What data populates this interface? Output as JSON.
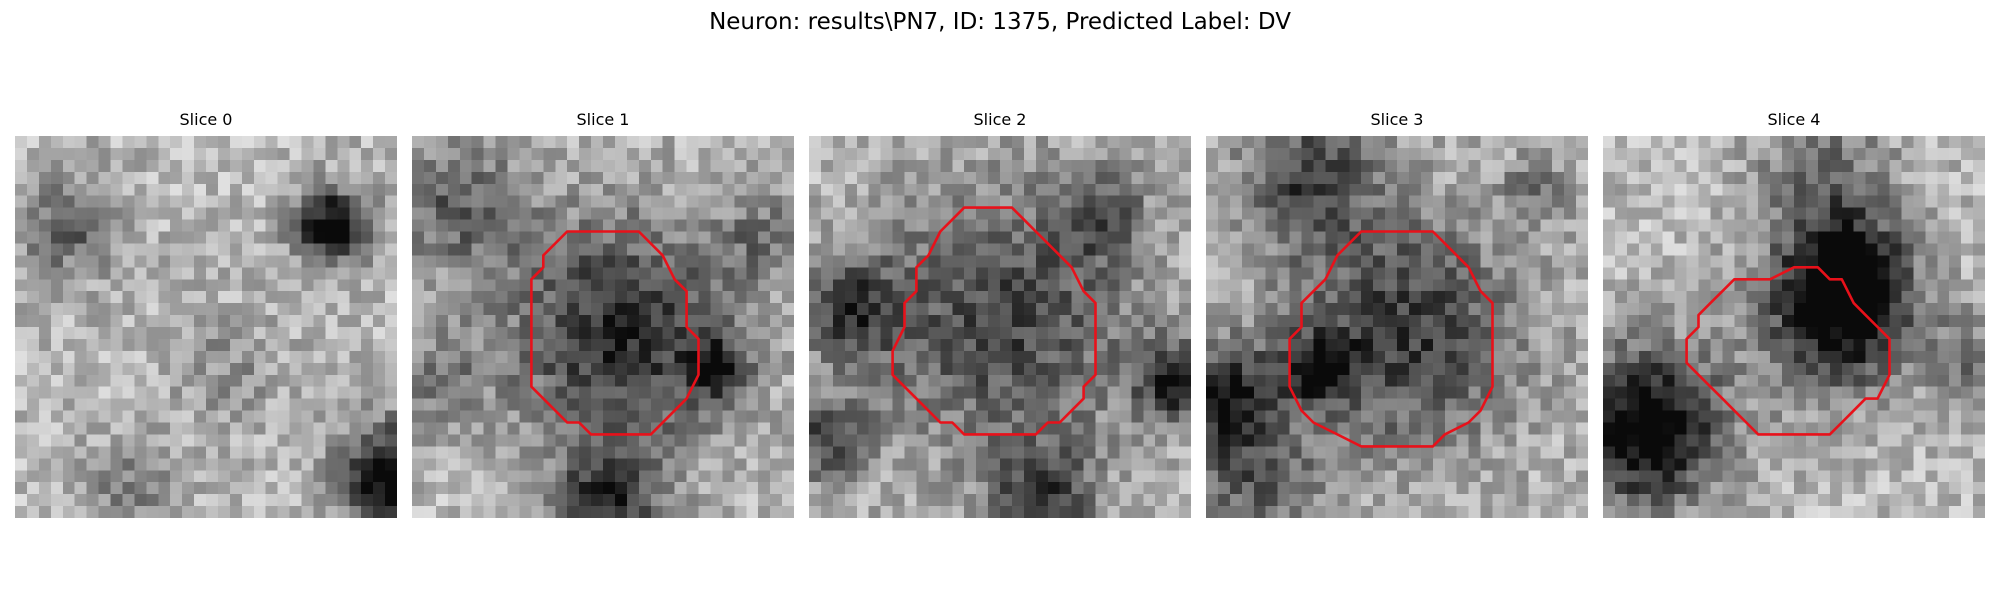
{
  "figure": {
    "title": "Neuron: results\\PN7, ID: 1375, Predicted Label: DV",
    "contour_color": "#e8111a",
    "colormap": "gray"
  },
  "panels": [
    {
      "title": "Slice 0",
      "has_contour": false
    },
    {
      "title": "Slice 1",
      "has_contour": true
    },
    {
      "title": "Slice 2",
      "has_contour": true
    },
    {
      "title": "Slice 3",
      "has_contour": true
    },
    {
      "title": "Slice 4",
      "has_contour": true
    }
  ]
}
